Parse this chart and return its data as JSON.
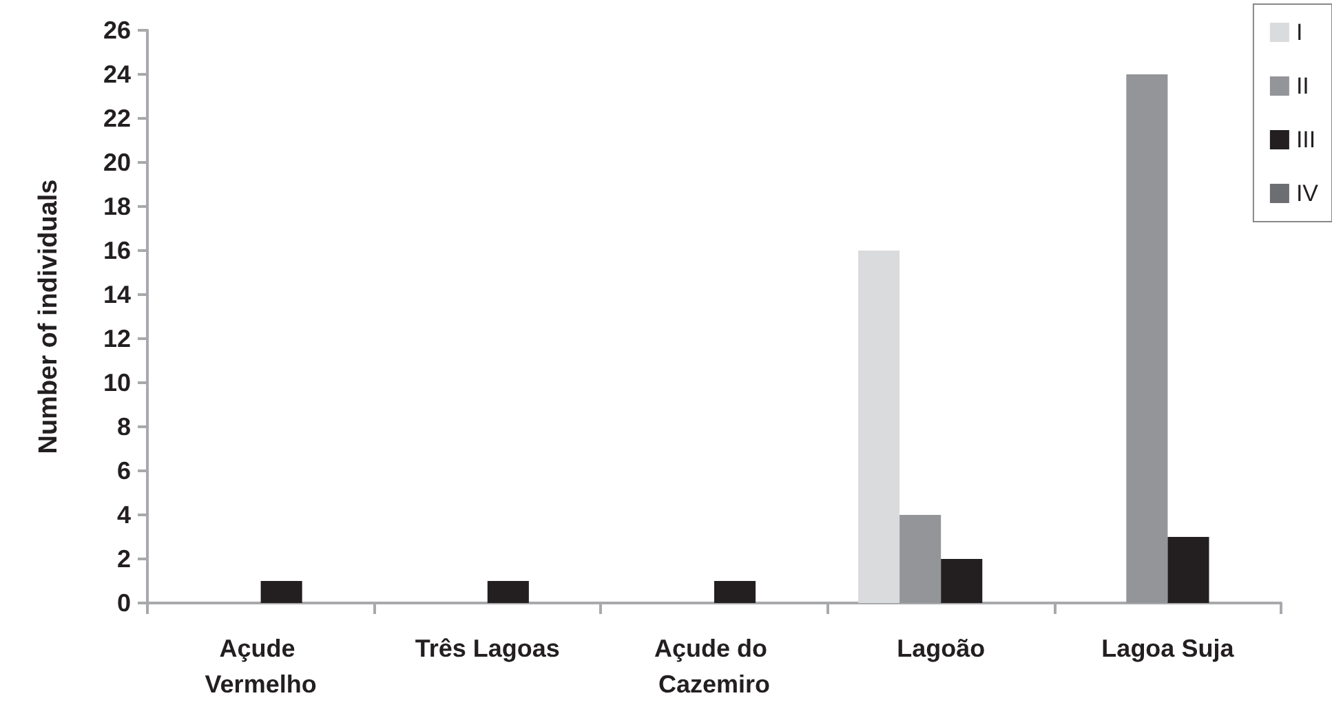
{
  "chart_data": {
    "type": "bar",
    "ylabel": "Number of individuals",
    "categories": [
      "Açude Vermelho",
      "Três Lagoas",
      "Açude do Cazemiro",
      "Lagoão",
      "Lagoa Suja"
    ],
    "series": [
      {
        "name": "I",
        "color": "#dadbdd",
        "values": [
          null,
          null,
          null,
          16,
          null
        ]
      },
      {
        "name": "II",
        "color": "#939598",
        "values": [
          null,
          null,
          null,
          4,
          24
        ]
      },
      {
        "name": "III",
        "color": "#231f20",
        "values": [
          1,
          1,
          1,
          2,
          3
        ]
      },
      {
        "name": "IV",
        "color": "#6d6e71",
        "values": [
          null,
          null,
          null,
          null,
          null
        ]
      }
    ],
    "ylim": [
      0,
      26
    ],
    "yticks": [
      0,
      2,
      4,
      6,
      8,
      10,
      12,
      14,
      16,
      18,
      20,
      22,
      24,
      26
    ],
    "grid": false,
    "legend": "top right"
  }
}
